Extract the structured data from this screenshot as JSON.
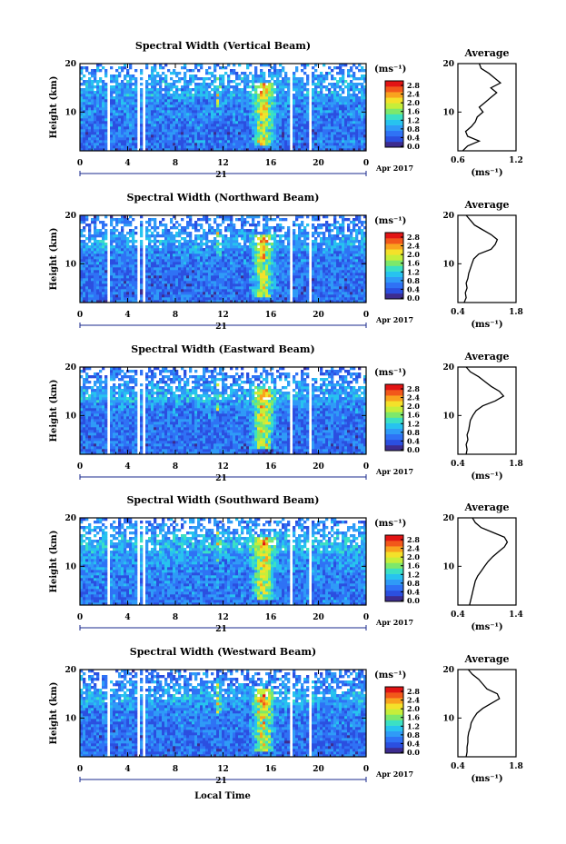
{
  "figure": {
    "xlabel": "Local Time",
    "day_label": "21",
    "date_label": "Apr 2017",
    "ylabel": "Height (km)",
    "units": "(ms⁻¹)",
    "avg_title": "Average",
    "avg_units": "(ms⁻¹)"
  },
  "colors": [
    "#3d2c8f",
    "#2b4fe0",
    "#2f72f5",
    "#2f9bf7",
    "#27c3ef",
    "#3be0c4",
    "#7de86b",
    "#c6ee3a",
    "#f4e12a",
    "#f9a31e",
    "#f2581a",
    "#e21414"
  ],
  "chart_data": [
    {
      "type": "heatmap",
      "title": "Spectral Width (Vertical Beam)",
      "beam": "vertical",
      "xlim": [
        0,
        24
      ],
      "ylim": [
        2,
        20
      ],
      "x_ticks": [
        "0",
        "4",
        "8",
        "12",
        "16",
        "20",
        "0"
      ],
      "y_ticks": [
        "20",
        "10"
      ],
      "colorbar_ticks": [
        "2.8",
        "2.4",
        "2.0",
        "1.6",
        "1.2",
        "0.8",
        "0.4",
        "0.0"
      ],
      "data_gaps_hours": [
        [
          2.2,
          2.5
        ],
        [
          4.8,
          5.0
        ],
        [
          5.2,
          5.4
        ],
        [
          17.6,
          17.9
        ],
        [
          19.2,
          19.5
        ]
      ],
      "average": {
        "xlim": [
          0.6,
          1.2
        ],
        "x_ticks": [
          "0.6",
          "1.2"
        ],
        "height_km": [
          2,
          3,
          4,
          5,
          6,
          7,
          8,
          9,
          10,
          11,
          12,
          13,
          14,
          15,
          16,
          17,
          18,
          19,
          20
        ],
        "value": [
          0.65,
          0.7,
          0.82,
          0.7,
          0.68,
          0.74,
          0.78,
          0.8,
          0.86,
          0.82,
          0.88,
          0.94,
          1.0,
          0.94,
          1.04,
          0.98,
          0.92,
          0.84,
          0.82
        ]
      }
    },
    {
      "type": "heatmap",
      "title": "Spectral Width (Northward Beam)",
      "beam": "northward",
      "xlim": [
        0,
        24
      ],
      "ylim": [
        2,
        20
      ],
      "x_ticks": [
        "0",
        "4",
        "8",
        "12",
        "16",
        "20",
        "0"
      ],
      "y_ticks": [
        "20",
        "10"
      ],
      "colorbar_ticks": [
        "2.8",
        "2.4",
        "2.0",
        "1.6",
        "1.2",
        "0.8",
        "0.4",
        "0.0"
      ],
      "data_gaps_hours": [
        [
          2.2,
          2.5
        ],
        [
          4.8,
          5.0
        ],
        [
          5.2,
          5.4
        ],
        [
          17.6,
          17.9
        ],
        [
          19.2,
          19.5
        ]
      ],
      "average": {
        "xlim": [
          0.4,
          1.8
        ],
        "x_ticks": [
          "0.4",
          "1.8"
        ],
        "height_km": [
          2,
          3,
          4,
          5,
          6,
          7,
          8,
          9,
          10,
          11,
          12,
          13,
          14,
          15,
          16,
          17,
          18,
          19,
          20
        ],
        "value": [
          0.55,
          0.6,
          0.58,
          0.62,
          0.6,
          0.64,
          0.66,
          0.7,
          0.74,
          0.78,
          0.9,
          1.2,
          1.3,
          1.35,
          1.2,
          1.0,
          0.8,
          0.7,
          0.6
        ]
      }
    },
    {
      "type": "heatmap",
      "title": "Spectral Width (Eastward Beam)",
      "beam": "eastward",
      "xlim": [
        0,
        24
      ],
      "ylim": [
        2,
        20
      ],
      "x_ticks": [
        "0",
        "4",
        "8",
        "12",
        "16",
        "20",
        "0"
      ],
      "y_ticks": [
        "20",
        "10"
      ],
      "colorbar_ticks": [
        "2.8",
        "2.4",
        "2.0",
        "1.6",
        "1.2",
        "0.8",
        "0.4",
        "0.0"
      ],
      "data_gaps_hours": [
        [
          2.2,
          2.5
        ],
        [
          4.8,
          5.0
        ],
        [
          5.2,
          5.4
        ],
        [
          17.6,
          17.9
        ],
        [
          19.2,
          19.5
        ]
      ],
      "average": {
        "xlim": [
          0.4,
          1.8
        ],
        "x_ticks": [
          "0.4",
          "1.8"
        ],
        "height_km": [
          2,
          3,
          4,
          5,
          6,
          7,
          8,
          9,
          10,
          11,
          12,
          13,
          14,
          15,
          16,
          17,
          18,
          19,
          20
        ],
        "value": [
          0.6,
          0.62,
          0.6,
          0.64,
          0.62,
          0.66,
          0.68,
          0.7,
          0.76,
          0.84,
          1.0,
          1.3,
          1.5,
          1.4,
          1.2,
          1.05,
          0.9,
          0.7,
          0.6
        ]
      }
    },
    {
      "type": "heatmap",
      "title": "Spectral Width (Southward Beam)",
      "beam": "southward",
      "xlim": [
        0,
        24
      ],
      "ylim": [
        2,
        20
      ],
      "x_ticks": [
        "0",
        "4",
        "8",
        "12",
        "16",
        "20",
        "0"
      ],
      "y_ticks": [
        "20",
        "10"
      ],
      "colorbar_ticks": [
        "2.8",
        "2.4",
        "2.0",
        "1.6",
        "1.2",
        "0.8",
        "0.4",
        "0.0"
      ],
      "data_gaps_hours": [
        [
          2.2,
          2.5
        ],
        [
          4.8,
          5.0
        ],
        [
          5.2,
          5.4
        ],
        [
          17.6,
          17.9
        ],
        [
          19.2,
          19.5
        ]
      ],
      "average": {
        "xlim": [
          0.4,
          1.4
        ],
        "x_ticks": [
          "0.4",
          "1.4"
        ],
        "height_km": [
          2,
          3,
          4,
          5,
          6,
          7,
          8,
          9,
          10,
          11,
          12,
          13,
          14,
          15,
          16,
          17,
          18,
          19,
          20
        ],
        "value": [
          0.6,
          0.62,
          0.64,
          0.66,
          0.68,
          0.7,
          0.74,
          0.8,
          0.86,
          0.92,
          1.0,
          1.1,
          1.2,
          1.25,
          1.2,
          1.0,
          0.8,
          0.7,
          0.65
        ]
      }
    },
    {
      "type": "heatmap",
      "title": "Spectral Width (Westward Beam)",
      "beam": "westward",
      "xlim": [
        0,
        24
      ],
      "ylim": [
        2,
        20
      ],
      "x_ticks": [
        "0",
        "4",
        "8",
        "12",
        "16",
        "20",
        "0"
      ],
      "y_ticks": [
        "20",
        "10"
      ],
      "colorbar_ticks": [
        "2.8",
        "2.4",
        "2.0",
        "1.6",
        "1.2",
        "0.8",
        "0.4",
        "0.0"
      ],
      "data_gaps_hours": [
        [
          2.2,
          2.5
        ],
        [
          4.8,
          5.0
        ],
        [
          5.2,
          5.4
        ],
        [
          17.6,
          17.9
        ],
        [
          19.2,
          19.5
        ]
      ],
      "average": {
        "xlim": [
          0.4,
          1.8
        ],
        "x_ticks": [
          "0.4",
          "1.8"
        ],
        "height_km": [
          2,
          3,
          4,
          5,
          6,
          7,
          8,
          9,
          10,
          11,
          12,
          13,
          14,
          15,
          16,
          17,
          18,
          19,
          20
        ],
        "value": [
          0.6,
          0.62,
          0.62,
          0.64,
          0.64,
          0.66,
          0.7,
          0.72,
          0.78,
          0.86,
          1.0,
          1.2,
          1.4,
          1.35,
          1.1,
          1.0,
          0.9,
          0.75,
          0.65
        ]
      }
    }
  ]
}
